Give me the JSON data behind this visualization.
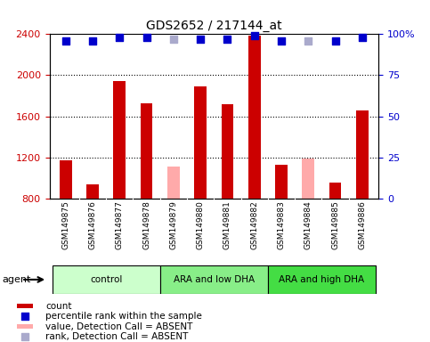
{
  "title": "GDS2652 / 217144_at",
  "samples": [
    "GSM149875",
    "GSM149876",
    "GSM149877",
    "GSM149878",
    "GSM149879",
    "GSM149880",
    "GSM149881",
    "GSM149882",
    "GSM149883",
    "GSM149884",
    "GSM149885",
    "GSM149886"
  ],
  "bar_values": [
    1175,
    940,
    1940,
    1730,
    null,
    1890,
    1720,
    2390,
    1130,
    null,
    950,
    1660
  ],
  "bar_absent_values": [
    null,
    null,
    null,
    null,
    1110,
    null,
    null,
    null,
    null,
    1190,
    null,
    null
  ],
  "percentile_values": [
    96,
    96,
    98,
    98,
    null,
    97,
    97,
    99,
    96,
    null,
    96,
    98
  ],
  "percentile_absent_values": [
    null,
    null,
    null,
    null,
    97,
    null,
    null,
    null,
    null,
    96,
    null,
    null
  ],
  "bar_color": "#cc0000",
  "bar_absent_color": "#ffaaaa",
  "dot_color": "#0000cc",
  "dot_absent_color": "#aaaacc",
  "ymin": 800,
  "ymax": 2400,
  "yticks": [
    800,
    1200,
    1600,
    2000,
    2400
  ],
  "y2min": 0,
  "y2max": 100,
  "y2ticks": [
    0,
    25,
    50,
    75,
    100
  ],
  "y2tick_labels": [
    "0",
    "25",
    "50",
    "75",
    "100%"
  ],
  "groups": [
    {
      "label": "control",
      "start": 0,
      "end": 3,
      "color": "#ccffcc"
    },
    {
      "label": "ARA and low DHA",
      "start": 4,
      "end": 7,
      "color": "#88ee88"
    },
    {
      "label": "ARA and high DHA",
      "start": 8,
      "end": 11,
      "color": "#44dd44"
    }
  ],
  "sample_bg_color": "#cccccc",
  "plot_bg": "#ffffff",
  "bar_width": 0.45,
  "dot_size": 40,
  "y_label_color": "#cc0000",
  "y2_label_color": "#0000cc",
  "legend_items": [
    {
      "color": "#cc0000",
      "kind": "bar",
      "label": "count"
    },
    {
      "color": "#0000cc",
      "kind": "dot",
      "label": "percentile rank within the sample"
    },
    {
      "color": "#ffaaaa",
      "kind": "bar",
      "label": "value, Detection Call = ABSENT"
    },
    {
      "color": "#aaaacc",
      "kind": "dot",
      "label": "rank, Detection Call = ABSENT"
    }
  ]
}
